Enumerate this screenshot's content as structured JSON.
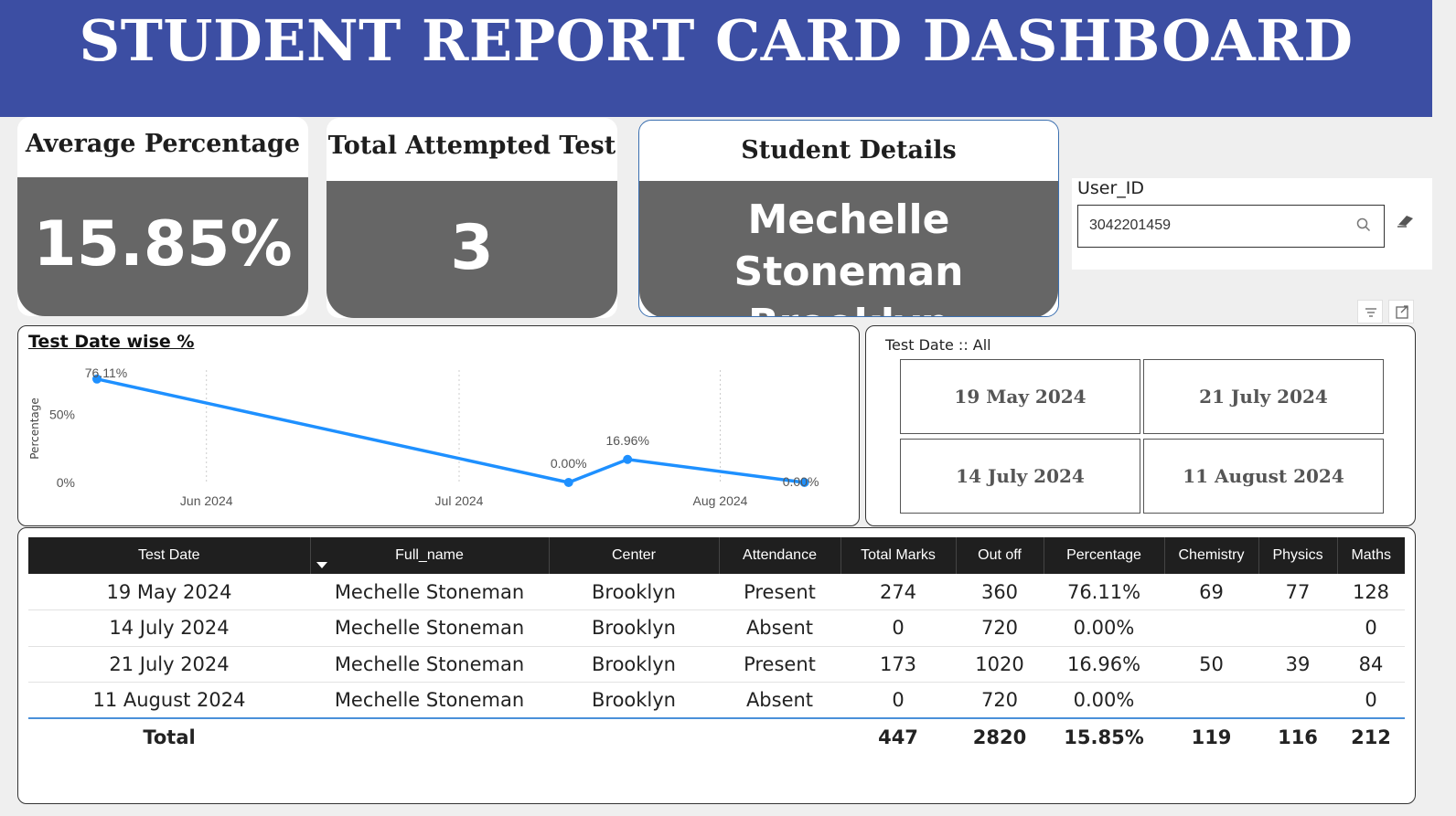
{
  "header": {
    "title": "STUDENT REPORT CARD DASHBOARD",
    "bg_color": "#3c4ea3"
  },
  "kpi": {
    "avg_pct": {
      "label": "Average Percentage",
      "value": "15.85%"
    },
    "attempted": {
      "label": "Total Attempted Test",
      "value": "3"
    },
    "student": {
      "label": "Student Details",
      "name": "Mechelle Stoneman",
      "center": "Brooklyn"
    }
  },
  "user_slicer": {
    "label": "User_ID",
    "value": "3042201459",
    "search_icon": "search-icon",
    "clear_icon": "eraser-icon"
  },
  "line_chart": {
    "title": "Test Date wise %"
  },
  "chart_data": {
    "type": "line",
    "title": "Test Date wise %",
    "xlabel": "",
    "ylabel": "Percentage",
    "x": [
      "2024-05-19",
      "2024-07-14",
      "2024-07-21",
      "2024-08-11"
    ],
    "values": [
      76.11,
      0.0,
      16.96,
      0.0
    ],
    "data_labels": [
      "76.11%",
      "0.00%",
      "16.96%",
      "0.00%"
    ],
    "x_ticks": [
      "Jun 2024",
      "Jul 2024",
      "Aug 2024"
    ],
    "y_ticks": [
      "0%",
      "50%"
    ],
    "ylim": [
      0,
      80
    ],
    "grid": "vertical dotted",
    "color": "#1e90ff"
  },
  "date_slicer": {
    "label": "Test Date :: All",
    "options": [
      "19 May 2024",
      "21 July 2024",
      "14 July 2024",
      "11 August 2024"
    ]
  },
  "table": {
    "columns": [
      "Test Date",
      "Full_name",
      "Center",
      "Attendance",
      "Total Marks",
      "Out off",
      "Percentage",
      "Chemistry",
      "Physics",
      "Maths"
    ],
    "rows": [
      [
        "19 May 2024",
        "Mechelle Stoneman",
        "Brooklyn",
        "Present",
        "274",
        "360",
        "76.11%",
        "69",
        "77",
        "128"
      ],
      [
        "14 July 2024",
        "Mechelle Stoneman",
        "Brooklyn",
        "Absent",
        "0",
        "720",
        "0.00%",
        "",
        "",
        "0"
      ],
      [
        "21 July 2024",
        "Mechelle Stoneman",
        "Brooklyn",
        "Present",
        "173",
        "1020",
        "16.96%",
        "50",
        "39",
        "84"
      ],
      [
        "11 August 2024",
        "Mechelle Stoneman",
        "Brooklyn",
        "Absent",
        "0",
        "720",
        "0.00%",
        "",
        "",
        "0"
      ]
    ],
    "total": [
      "Total",
      "",
      "",
      "",
      "447",
      "2820",
      "15.85%",
      "119",
      "116",
      "212"
    ]
  }
}
